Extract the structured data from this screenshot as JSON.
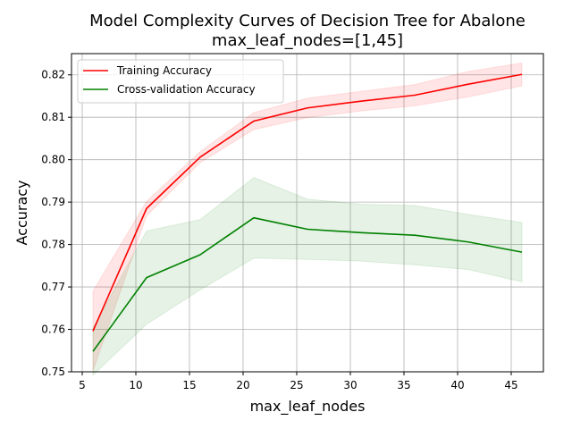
{
  "chart_data": {
    "type": "line",
    "title": "Model Complexity Curves of Decision Tree for Abalone",
    "subtitle": "max_leaf_nodes=[1,45]",
    "xlabel": "max_leaf_nodes",
    "ylabel": "Accuracy",
    "xlim": [
      4.0,
      48.0
    ],
    "ylim": [
      0.75,
      0.825
    ],
    "xticks": [
      5,
      10,
      15,
      20,
      25,
      30,
      35,
      40,
      45
    ],
    "yticks": [
      0.75,
      0.76,
      0.77,
      0.78,
      0.79,
      0.8,
      0.81,
      0.82
    ],
    "ytick_labels": [
      "0.75",
      "0.76",
      "0.77",
      "0.78",
      "0.79",
      "0.80",
      "0.81",
      "0.82"
    ],
    "grid": true,
    "legend_position": "top-left",
    "x": [
      6,
      11,
      16,
      21,
      26,
      31,
      36,
      41,
      46
    ],
    "series": [
      {
        "name": "Training Accuracy",
        "color": "#ff0000",
        "band_color": "#ff0000",
        "values": [
          0.7596,
          0.7885,
          0.8006,
          0.8091,
          0.8122,
          0.8138,
          0.8152,
          0.8178,
          0.8201
        ],
        "band_lower": [
          0.7502,
          0.7868,
          0.7993,
          0.8071,
          0.8099,
          0.8115,
          0.8127,
          0.8148,
          0.8174
        ],
        "band_upper": [
          0.769,
          0.7902,
          0.8019,
          0.8111,
          0.8145,
          0.8161,
          0.8177,
          0.8208,
          0.8228
        ]
      },
      {
        "name": "Cross-validation Accuracy",
        "color": "#008000",
        "band_color": "#008000",
        "values": [
          0.7548,
          0.7722,
          0.7776,
          0.7863,
          0.7836,
          0.7828,
          0.7822,
          0.7806,
          0.7782
        ],
        "band_lower": [
          0.7492,
          0.7612,
          0.7693,
          0.7768,
          0.7765,
          0.7761,
          0.7752,
          0.7741,
          0.7712
        ],
        "band_upper": [
          0.7604,
          0.7832,
          0.7859,
          0.7958,
          0.7907,
          0.7895,
          0.7892,
          0.7871,
          0.7852
        ]
      }
    ]
  }
}
